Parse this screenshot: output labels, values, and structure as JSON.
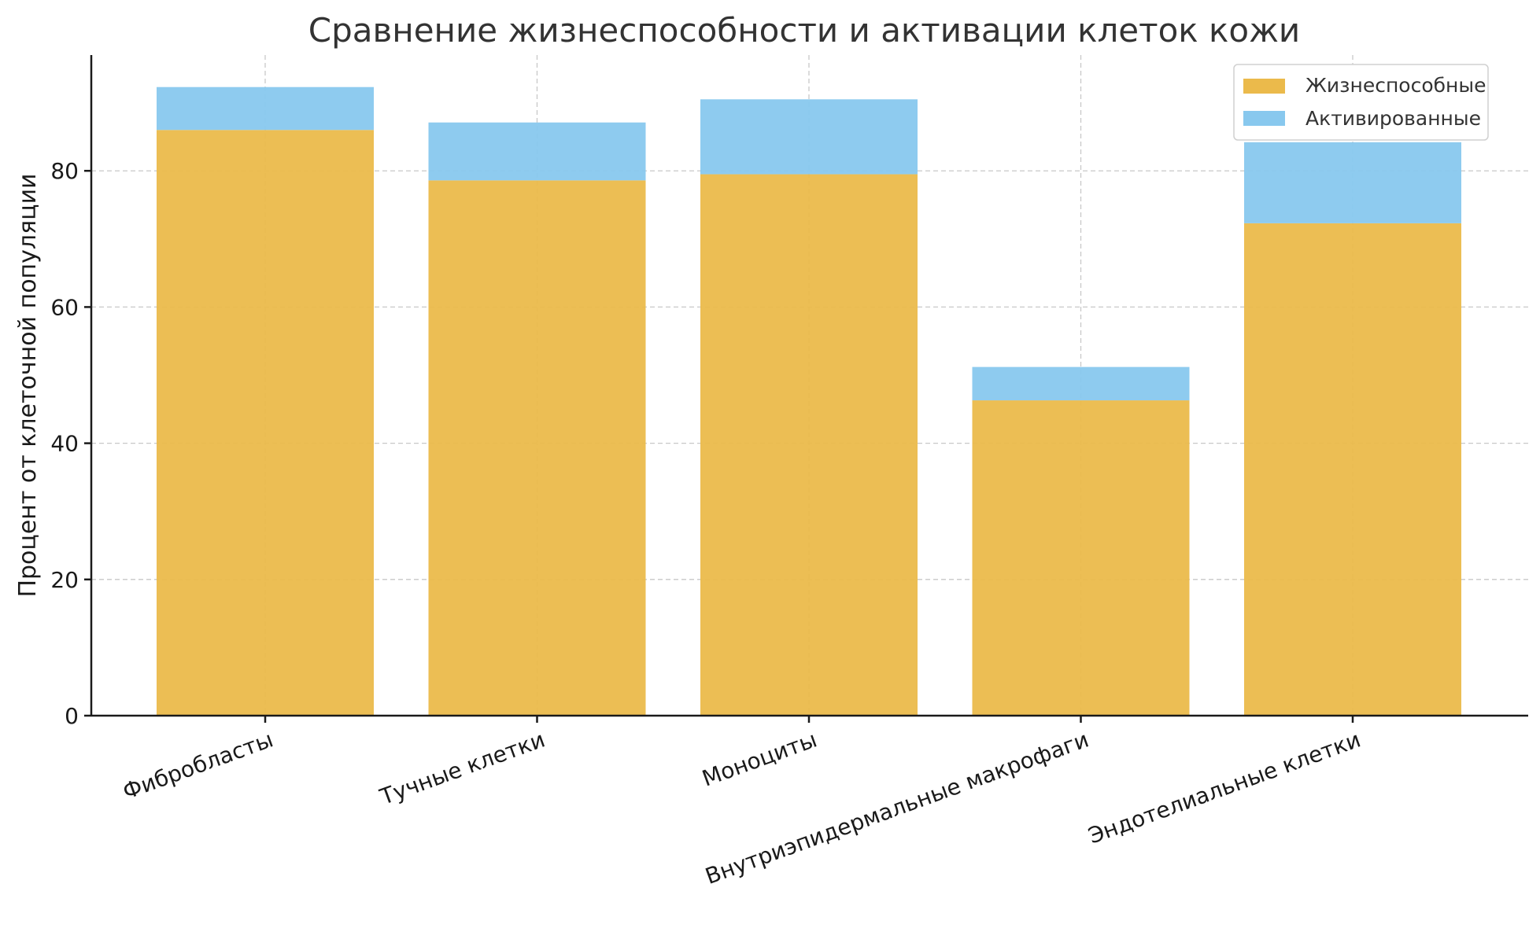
{
  "chart_data": {
    "type": "bar",
    "stacked": true,
    "title": "Сравнение жизнеспособности и активации клеток кожи",
    "xlabel": "",
    "ylabel": "Процент от клеточной популяции",
    "ylim": [
      0,
      97
    ],
    "yticks": [
      0,
      20,
      40,
      60,
      80
    ],
    "grid": true,
    "legend_position": "top-right",
    "categories": [
      "Фибробласты",
      "Тучные клетки",
      "Моноциты",
      "Внутриэпидермальные макрофаги",
      "Эндотелиальные клетки"
    ],
    "series": [
      {
        "name": "Жизнеспособные",
        "color": "#ebba4b",
        "values": [
          86.0,
          78.6,
          79.5,
          46.3,
          72.3
        ]
      },
      {
        "name": "Активированные",
        "color": "#88c8ee",
        "values": [
          6.3,
          8.5,
          11.0,
          4.9,
          11.9
        ]
      }
    ]
  }
}
